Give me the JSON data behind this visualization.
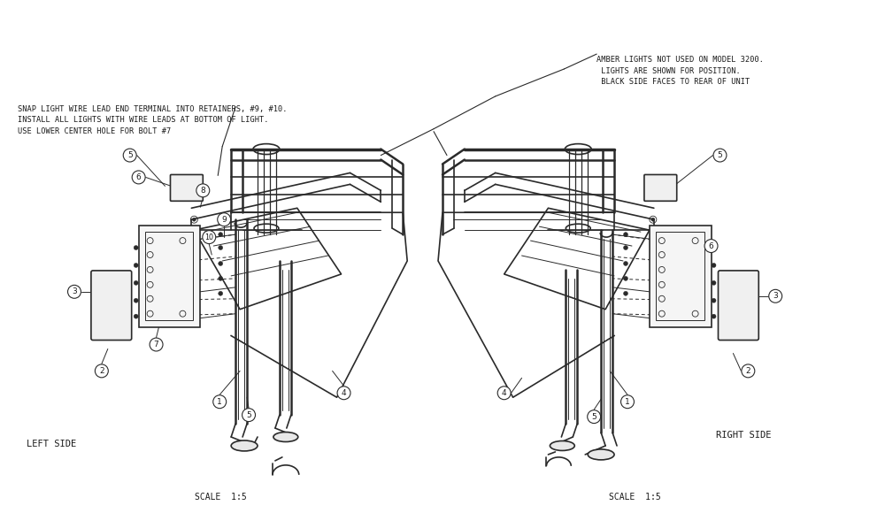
{
  "bg_color": "#ffffff",
  "line_color": "#2a2a2a",
  "text_color": "#1a1a1a",
  "note_top_right": "AMBER LIGHTS NOT USED ON MODEL 3200.\n LIGHTS ARE SHOWN FOR POSITION.\n BLACK SIDE FACES TO REAR OF UNIT",
  "note_top_left": "SNAP LIGHT WIRE LEAD END TERMINAL INTO RETAINERS, #9, #10.\nINSTALL ALL LIGHTS WITH WIRE LEADS AT BOTTOM OF LIGHT.\nUSE LOWER CENTER HOLE FOR BOLT #7",
  "left_label": "LEFT SIDE",
  "right_label": "RIGHT SIDE",
  "left_scale": "SCALE  1:5",
  "right_scale": "SCALE  1:5",
  "font_size_note": 6.2,
  "font_size_label": 7.5,
  "font_size_scale": 7.0,
  "font_size_callout": 6.5
}
